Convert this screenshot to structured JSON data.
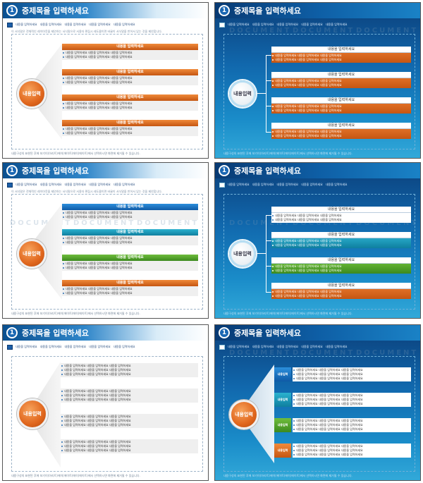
{
  "slide": {
    "number": "1",
    "title": "중제목을 입력하세요",
    "subnav": [
      "내용을 입력하세요",
      "내용을 입력하세요",
      "내용을 입력하세요",
      "내용을 입력하세요",
      "내용을 입력하세요"
    ],
    "description": "이 서식말은 전체적인 레이아웃을 제안하는 서식말으로 서용자 편집시 레도콜이면 바꿀이 서식말을 반어서 있는 것을 제안합니다.",
    "footer": "내용구성의 표현된 후에 보기이(아리트)에이(에이트)에이(에이트)에서 선택하시면 화면에 제거될 수 있습니다.",
    "watermark": "DOCUMENT",
    "center_label": "내용입력",
    "item_title": "내용을 입력하세요",
    "item_line": "내용을 입력하세요  내용을 입력하세요  내용을 입력하세요",
    "box_label": "내용입력"
  },
  "colors": {
    "header_blue": "#0a4f8f",
    "orange": "#e0661d",
    "blue": "#0f5aa6",
    "teal": "#0f7f9f",
    "green": "#3c8a1e"
  }
}
